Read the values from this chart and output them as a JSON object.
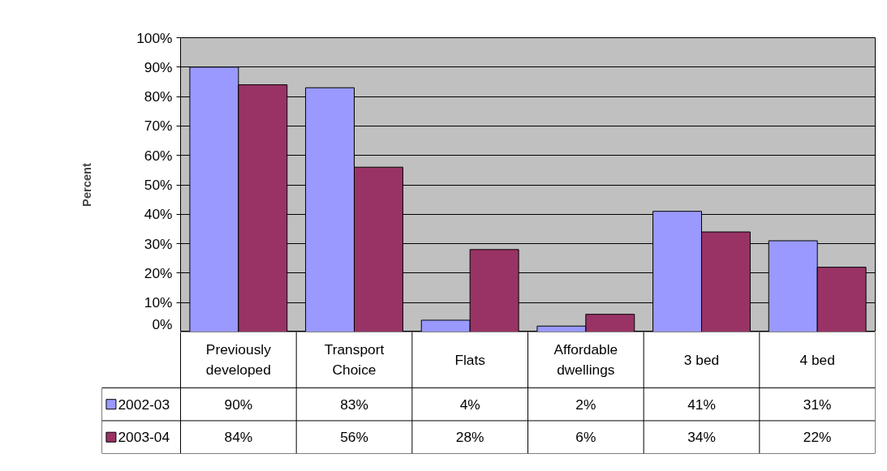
{
  "chart_data": {
    "type": "bar",
    "ylabel": "Percent",
    "categories": [
      "Previously developed",
      "Transport Choice",
      "Flats",
      "Affordable dwellings",
      "3 bed",
      "4 bed"
    ],
    "series": [
      {
        "name": "2002-03",
        "color": "#9999ff",
        "values": [
          90,
          83,
          4,
          2,
          41,
          31
        ],
        "value_labels": [
          "90%",
          "83%",
          "4%",
          "2%",
          "41%",
          "31%"
        ]
      },
      {
        "name": "2003-04",
        "color": "#993366",
        "values": [
          84,
          56,
          28,
          6,
          34,
          22
        ],
        "value_labels": [
          "84%",
          "56%",
          "28%",
          "6%",
          "34%",
          "22%"
        ]
      }
    ],
    "ylim": [
      0,
      100
    ],
    "yticks": [
      {
        "value": 0,
        "label": "0%"
      },
      {
        "value": 10,
        "label": "10%"
      },
      {
        "value": 20,
        "label": "20%"
      },
      {
        "value": 30,
        "label": "30%"
      },
      {
        "value": 40,
        "label": "40%"
      },
      {
        "value": 50,
        "label": "50%"
      },
      {
        "value": 60,
        "label": "60%"
      },
      {
        "value": 70,
        "label": "70%"
      },
      {
        "value": 80,
        "label": "80%"
      },
      {
        "value": 90,
        "label": "90%"
      },
      {
        "value": 100,
        "label": "100%"
      }
    ],
    "grid": "y",
    "legend": "bottom"
  }
}
